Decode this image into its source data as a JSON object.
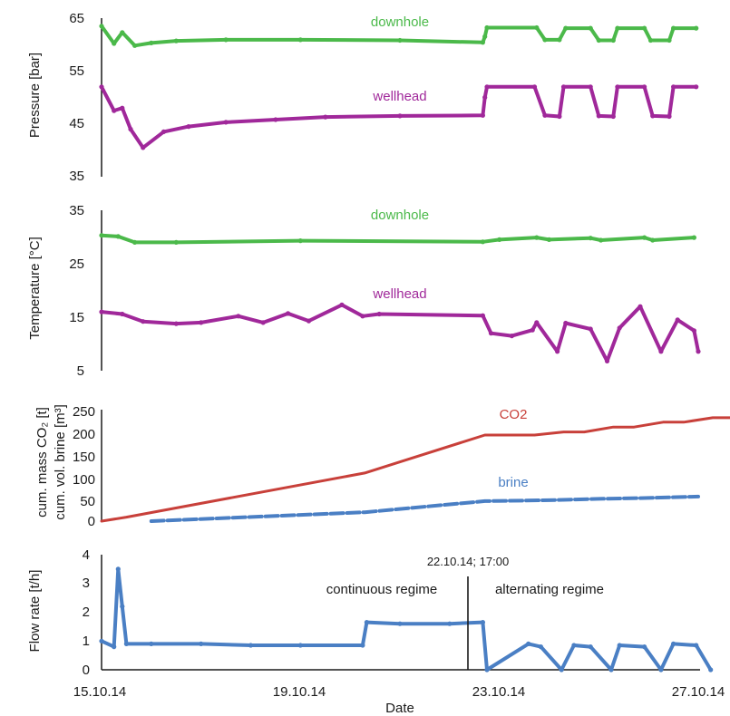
{
  "figure": {
    "date_axis": {
      "xlabel": "Date",
      "tick_labels": [
        "15.10.14",
        "19.10.14",
        "23.10.14",
        "27.10.14"
      ],
      "tick_dates": [
        "2014-10-15",
        "2014-10-19",
        "2014-10-23",
        "2014-10-27"
      ],
      "xlim": [
        "2014-10-15 00:00",
        "2014-10-27 00:00"
      ]
    },
    "regime_split": {
      "label": "22.10.14; 17:00",
      "date": "2014-10-22 17:00",
      "left_label": "continuous regime",
      "right_label": "alternating regime"
    }
  },
  "chart_data": [
    {
      "type": "scatter",
      "panel": "pressure",
      "ylabel": "Pressure [bar]",
      "ylim": [
        35,
        65
      ],
      "yticks": [
        "35",
        "45",
        "55",
        "65"
      ],
      "colors": {
        "downhole": "#4bb94a",
        "wellhead": "#a0289a"
      },
      "series": [
        {
          "name": "downhole",
          "label_at": [
            "2014-10-20 05:00",
            63
          ],
          "points": [
            [
              "2014-10-15 00:00",
              63.5
            ],
            [
              "2014-10-15 06:00",
              60.2
            ],
            [
              "2014-10-15 10:00",
              62.3
            ],
            [
              "2014-10-15 16:00",
              59.8
            ],
            [
              "2014-10-16 00:00",
              60.3
            ],
            [
              "2014-10-16 12:00",
              60.7
            ],
            [
              "2014-10-17 12:00",
              60.9
            ],
            [
              "2014-10-19 00:00",
              60.9
            ],
            [
              "2014-10-21 00:00",
              60.8
            ],
            [
              "2014-10-22 16:00",
              60.4
            ],
            [
              "2014-10-22 17:00",
              61.5
            ],
            [
              "2014-10-22 18:00",
              63.2
            ],
            [
              "2014-10-23 18:00",
              63.2
            ],
            [
              "2014-10-23 22:00",
              60.9
            ],
            [
              "2014-10-24 05:00",
              60.9
            ],
            [
              "2014-10-24 08:00",
              63.1
            ],
            [
              "2014-10-24 20:00",
              63.1
            ],
            [
              "2014-10-25 00:00",
              60.8
            ],
            [
              "2014-10-25 07:00",
              60.8
            ],
            [
              "2014-10-25 09:00",
              63.1
            ],
            [
              "2014-10-25 22:00",
              63.1
            ],
            [
              "2014-10-26 01:00",
              60.8
            ],
            [
              "2014-10-26 10:00",
              60.8
            ],
            [
              "2014-10-26 12:00",
              63.1
            ],
            [
              "2014-10-26 23:00",
              63.1
            ]
          ]
        },
        {
          "name": "wellhead",
          "label_at": [
            "2014-10-20 05:00",
            48.5
          ],
          "points": [
            [
              "2014-10-15 00:00",
              52
            ],
            [
              "2014-10-15 06:00",
              47.5
            ],
            [
              "2014-10-15 10:00",
              48
            ],
            [
              "2014-10-15 14:00",
              44
            ],
            [
              "2014-10-15 20:00",
              40.5
            ],
            [
              "2014-10-16 06:00",
              43.5
            ],
            [
              "2014-10-16 18:00",
              44.5
            ],
            [
              "2014-10-17 12:00",
              45.3
            ],
            [
              "2014-10-18 12:00",
              45.8
            ],
            [
              "2014-10-19 12:00",
              46.3
            ],
            [
              "2014-10-21 00:00",
              46.5
            ],
            [
              "2014-10-22 16:00",
              46.6
            ],
            [
              "2014-10-22 17:00",
              50
            ],
            [
              "2014-10-22 18:00",
              52
            ],
            [
              "2014-10-23 17:00",
              52
            ],
            [
              "2014-10-23 22:00",
              46.6
            ],
            [
              "2014-10-24 05:00",
              46.4
            ],
            [
              "2014-10-24 07:00",
              52
            ],
            [
              "2014-10-24 20:00",
              52
            ],
            [
              "2014-10-25 00:00",
              46.5
            ],
            [
              "2014-10-25 07:00",
              46.4
            ],
            [
              "2014-10-25 09:00",
              52
            ],
            [
              "2014-10-25 22:00",
              52
            ],
            [
              "2014-10-26 02:00",
              46.5
            ],
            [
              "2014-10-26 10:00",
              46.4
            ],
            [
              "2014-10-26 12:00",
              52
            ],
            [
              "2014-10-26 23:00",
              52
            ]
          ]
        }
      ]
    },
    {
      "type": "scatter",
      "panel": "temperature",
      "ylabel": "Temperature [°C]",
      "ylim": [
        5,
        35
      ],
      "yticks": [
        "5",
        "15",
        "25",
        "35"
      ],
      "colors": {
        "downhole": "#4bb94a",
        "wellhead": "#a0289a"
      },
      "series": [
        {
          "name": "downhole",
          "label_at": [
            "2014-10-20 05:00",
            32.5
          ],
          "points": [
            [
              "2014-10-15 00:00",
              30.3
            ],
            [
              "2014-10-15 08:00",
              30.1
            ],
            [
              "2014-10-15 16:00",
              29.0
            ],
            [
              "2014-10-16 12:00",
              29.0
            ],
            [
              "2014-10-19 00:00",
              29.3
            ],
            [
              "2014-10-22 16:00",
              29.1
            ],
            [
              "2014-10-23 00:00",
              29.5
            ],
            [
              "2014-10-23 18:00",
              29.9
            ],
            [
              "2014-10-24 00:00",
              29.5
            ],
            [
              "2014-10-24 20:00",
              29.8
            ],
            [
              "2014-10-25 01:00",
              29.4
            ],
            [
              "2014-10-25 22:00",
              29.9
            ],
            [
              "2014-10-26 02:00",
              29.4
            ],
            [
              "2014-10-26 22:00",
              29.9
            ]
          ]
        },
        {
          "name": "wellhead",
          "label_at": [
            "2014-10-20 05:00",
            19.5
          ],
          "points": [
            [
              "2014-10-15 00:00",
              16
            ],
            [
              "2014-10-15 10:00",
              15.6
            ],
            [
              "2014-10-15 20:00",
              14.2
            ],
            [
              "2014-10-16 12:00",
              13.8
            ],
            [
              "2014-10-17 00:00",
              14.0
            ],
            [
              "2014-10-17 18:00",
              15.2
            ],
            [
              "2014-10-18 06:00",
              14.0
            ],
            [
              "2014-10-18 18:00",
              15.7
            ],
            [
              "2014-10-19 04:00",
              14.3
            ],
            [
              "2014-10-19 20:00",
              17.3
            ],
            [
              "2014-10-20 06:00",
              15.2
            ],
            [
              "2014-10-20 14:00",
              15.6
            ],
            [
              "2014-10-22 16:00",
              15.3
            ],
            [
              "2014-10-22 20:00",
              12
            ],
            [
              "2014-10-23 06:00",
              11.5
            ],
            [
              "2014-10-23 16:00",
              12.6
            ],
            [
              "2014-10-23 18:00",
              14.0
            ],
            [
              "2014-10-24 04:00",
              8.6
            ],
            [
              "2014-10-24 08:00",
              13.9
            ],
            [
              "2014-10-24 20:00",
              12.8
            ],
            [
              "2014-10-25 04:00",
              6.8
            ],
            [
              "2014-10-25 10:00",
              13.0
            ],
            [
              "2014-10-25 20:00",
              17.0
            ],
            [
              "2014-10-26 06:00",
              8.6
            ],
            [
              "2014-10-26 14:00",
              14.5
            ],
            [
              "2014-10-26 22:00",
              12.5
            ],
            [
              "2014-10-27 00:00",
              8.6
            ]
          ]
        }
      ]
    },
    {
      "type": "line",
      "panel": "cumulative",
      "ylabel": [
        "cum. mass CO₂ [t]",
        "cum. vol. brine [m³]"
      ],
      "ylim": [
        0,
        250
      ],
      "yticks": [
        "0",
        "50",
        "100",
        "150",
        "200",
        "250"
      ],
      "colors": {
        "CO2": "#c8403a",
        "brine": "#4a7fc4"
      },
      "series": [
        {
          "name": "CO2",
          "label_at": [
            "2014-10-23 13:00",
            222
          ],
          "points": [
            [
              "2014-10-15 00:00",
              0
            ],
            [
              "2014-10-15 12:00",
              9
            ],
            [
              "2014-10-20 07:00",
              108
            ],
            [
              "2014-10-22 17:00",
              193
            ],
            [
              "2014-10-23 17:00",
              193
            ],
            [
              "2014-10-24 07:00",
              200
            ],
            [
              "2014-10-24 17:00",
              200
            ],
            [
              "2014-10-25 07:00",
              211
            ],
            [
              "2014-10-25 17:00",
              211
            ],
            [
              "2014-10-26 07:00",
              222
            ],
            [
              "2014-10-26 17:00",
              222
            ],
            [
              "2014-10-27 07:00",
              232
            ],
            [
              "2014-10-27 17:00",
              232
            ]
          ]
        },
        {
          "name": "brine",
          "label_at": [
            "2014-10-23 13:00",
            75
          ],
          "dashed": true,
          "points": [
            [
              "2014-10-16 00:00",
              0
            ],
            [
              "2014-10-20 07:00",
              20
            ],
            [
              "2014-10-22 17:00",
              45
            ],
            [
              "2014-10-24 00:00",
              47
            ],
            [
              "2014-10-25 00:00",
              50
            ],
            [
              "2014-10-26 00:00",
              52
            ],
            [
              "2014-10-27 00:00",
              55
            ]
          ]
        }
      ]
    },
    {
      "type": "scatter",
      "panel": "flow",
      "ylabel": "Flow rate [t/h]",
      "ylim": [
        0,
        4
      ],
      "yticks": [
        "0",
        "1",
        "2",
        "3",
        "4"
      ],
      "color": "#4a7fc4",
      "series": [
        {
          "points": [
            [
              "2014-10-15 00:00",
              1.0
            ],
            [
              "2014-10-15 06:00",
              0.8
            ],
            [
              "2014-10-15 08:00",
              3.5
            ],
            [
              "2014-10-15 10:00",
              2.2
            ],
            [
              "2014-10-15 12:00",
              0.9
            ],
            [
              "2014-10-16 00:00",
              0.9
            ],
            [
              "2014-10-17 00:00",
              0.9
            ],
            [
              "2014-10-18 00:00",
              0.85
            ],
            [
              "2014-10-19 00:00",
              0.85
            ],
            [
              "2014-10-20 06:00",
              0.85
            ],
            [
              "2014-10-20 08:00",
              1.65
            ],
            [
              "2014-10-21 00:00",
              1.6
            ],
            [
              "2014-10-22 00:00",
              1.6
            ],
            [
              "2014-10-22 16:00",
              1.65
            ],
            [
              "2014-10-22 18:00",
              0
            ],
            [
              "2014-10-23 14:00",
              0.9
            ],
            [
              "2014-10-23 20:00",
              0.8
            ],
            [
              "2014-10-24 06:00",
              0.0
            ],
            [
              "2014-10-24 12:00",
              0.85
            ],
            [
              "2014-10-24 20:00",
              0.8
            ],
            [
              "2014-10-25 06:00",
              0.0
            ],
            [
              "2014-10-25 10:00",
              0.85
            ],
            [
              "2014-10-25 22:00",
              0.8
            ],
            [
              "2014-10-26 06:00",
              0.0
            ],
            [
              "2014-10-26 12:00",
              0.9
            ],
            [
              "2014-10-26 23:00",
              0.85
            ],
            [
              "2014-10-27 06:00",
              0.0
            ]
          ]
        }
      ]
    }
  ]
}
